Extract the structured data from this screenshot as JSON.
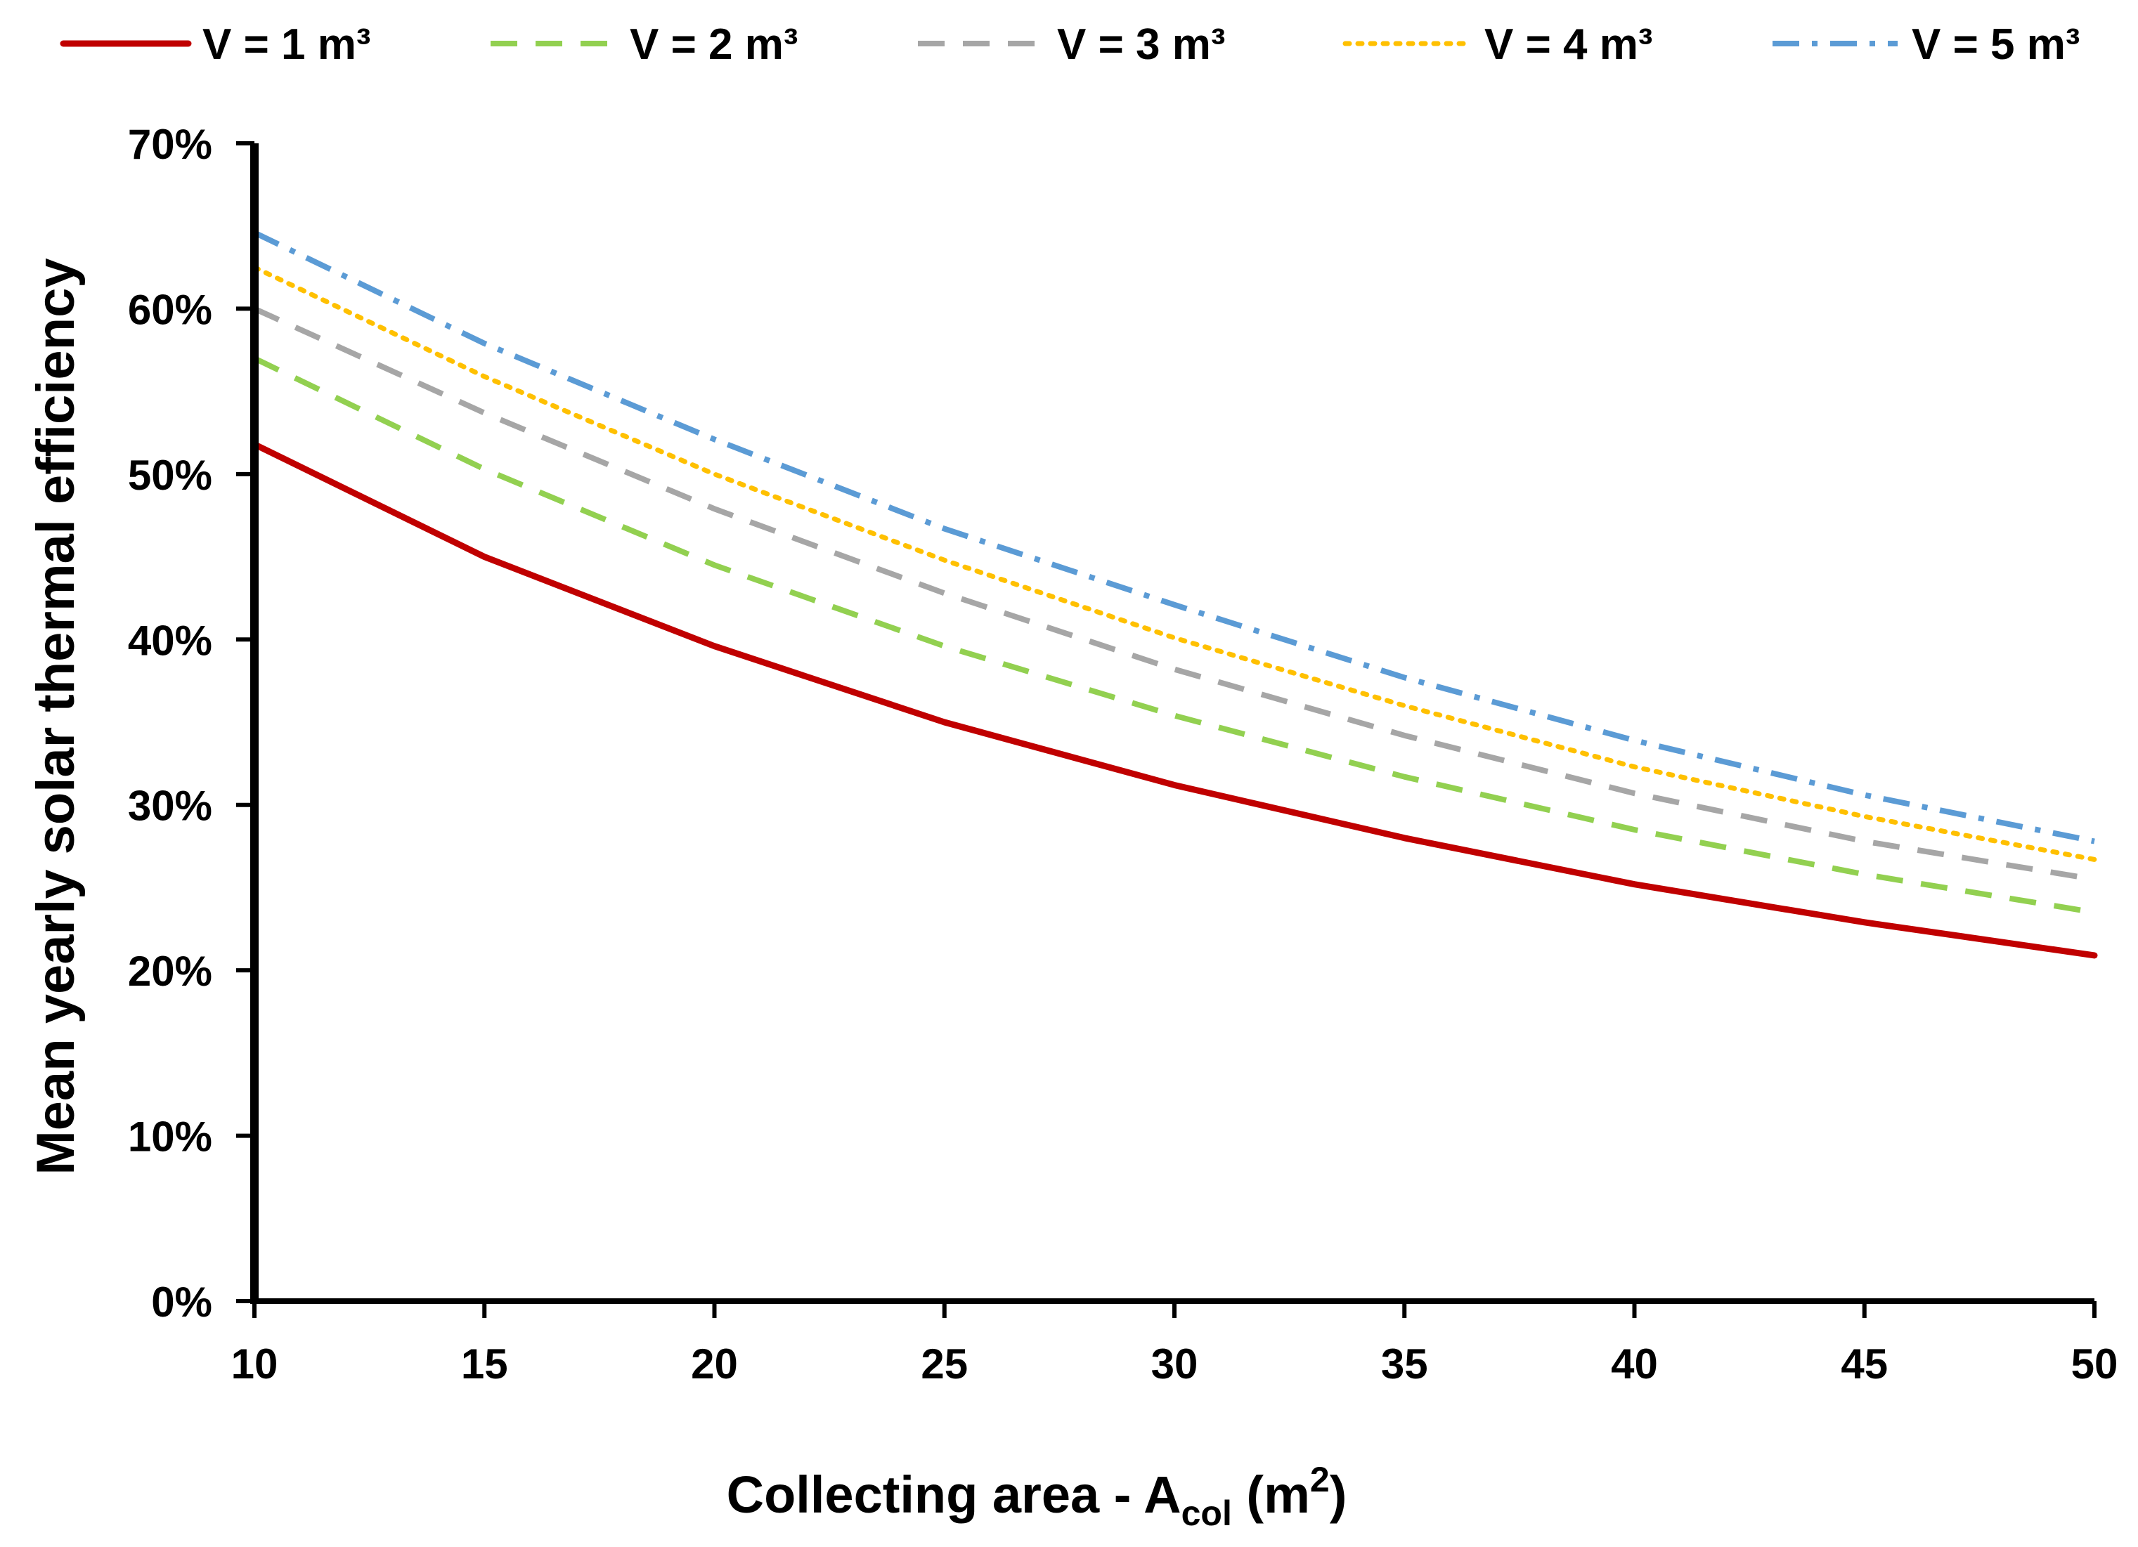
{
  "chart_data": {
    "type": "line",
    "title": "",
    "xlabel": {
      "main": "Collecting area - A",
      "sub": "col",
      "unit_prefix": " (m",
      "unit_exp": "2",
      "unit_suffix": ")"
    },
    "ylabel": "Mean yearly solar thermal efficiency",
    "xlim": [
      10,
      50
    ],
    "ylim": [
      0,
      70
    ],
    "x_ticks": [
      10,
      15,
      20,
      25,
      30,
      35,
      40,
      45,
      50
    ],
    "x_tick_labels": [
      "10",
      "15",
      "20",
      "25",
      "30",
      "35",
      "40",
      "45",
      "50"
    ],
    "y_ticks": [
      0,
      10,
      20,
      30,
      40,
      50,
      60,
      70
    ],
    "y_tick_labels": [
      "0%",
      "10%",
      "20%",
      "30%",
      "40%",
      "50%",
      "60%",
      "70%"
    ],
    "grid": false,
    "legend_position": "top",
    "x": [
      10,
      15,
      20,
      25,
      30,
      35,
      40,
      45,
      50
    ],
    "series": [
      {
        "name": "V = 1 m³",
        "color": "#C00000",
        "style": "solid",
        "values": [
          51.8,
          45.0,
          39.6,
          35.0,
          31.2,
          28.0,
          25.2,
          22.9,
          20.9
        ]
      },
      {
        "name": "V = 2 m³",
        "color": "#92D050",
        "style": "dashed",
        "values": [
          57.0,
          50.3,
          44.5,
          39.6,
          35.4,
          31.7,
          28.5,
          25.8,
          23.5
        ]
      },
      {
        "name": "V = 3 m³",
        "color": "#A6A6A6",
        "style": "dashed",
        "values": [
          60.0,
          53.7,
          47.9,
          42.8,
          38.2,
          34.2,
          30.7,
          27.8,
          25.5
        ]
      },
      {
        "name": "V = 4 m³",
        "color": "#FFC000",
        "style": "dotted",
        "values": [
          62.5,
          55.9,
          50.0,
          44.8,
          40.1,
          36.0,
          32.3,
          29.3,
          26.7
        ]
      },
      {
        "name": "V = 5 m³",
        "color": "#5B9BD5",
        "style": "dashdot",
        "values": [
          64.6,
          57.9,
          52.1,
          46.7,
          42.1,
          37.7,
          33.9,
          30.6,
          27.8
        ]
      }
    ]
  }
}
